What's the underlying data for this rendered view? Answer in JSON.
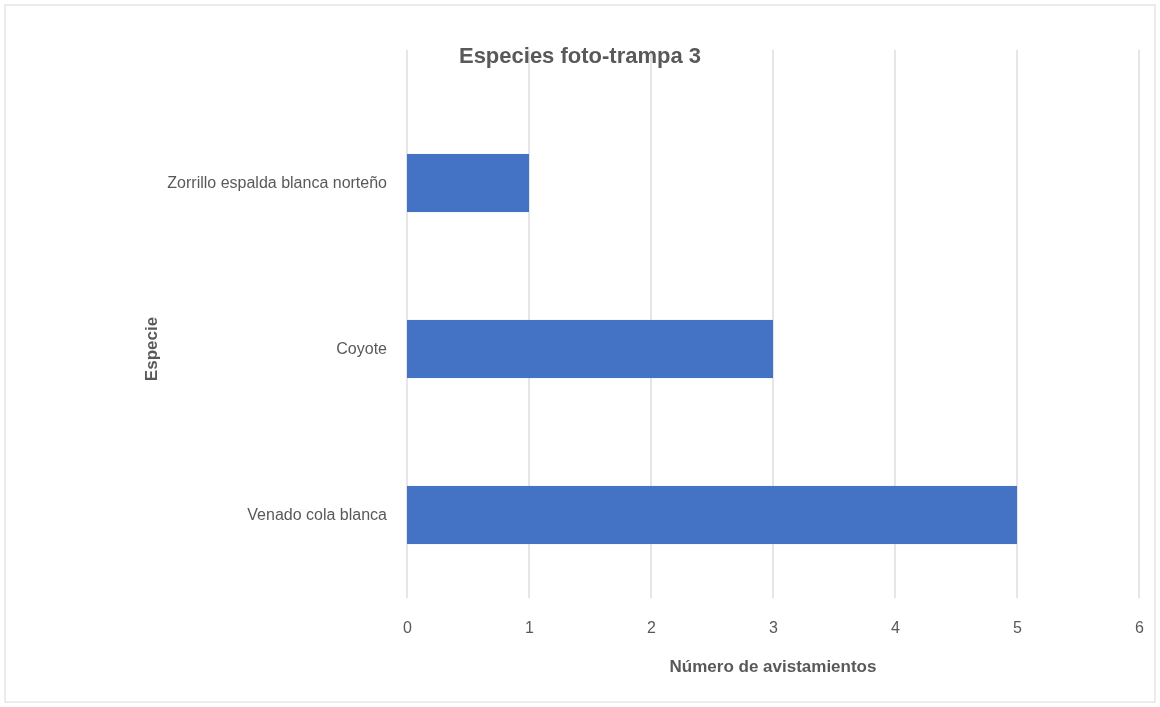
{
  "chart_data": {
    "type": "bar",
    "orientation": "horizontal",
    "title": "Especies foto-trampa 3",
    "xlabel": "Número de avistamientos",
    "ylabel": "Especie",
    "categories": [
      "Zorrillo espalda blanca norteño",
      "Coyote",
      "Venado cola blanca"
    ],
    "values": [
      1,
      3,
      5
    ],
    "color": "#4472c4",
    "xlim": [
      0,
      6
    ],
    "xticks": [
      0,
      1,
      2,
      3,
      4,
      5,
      6
    ],
    "grid": "x"
  }
}
